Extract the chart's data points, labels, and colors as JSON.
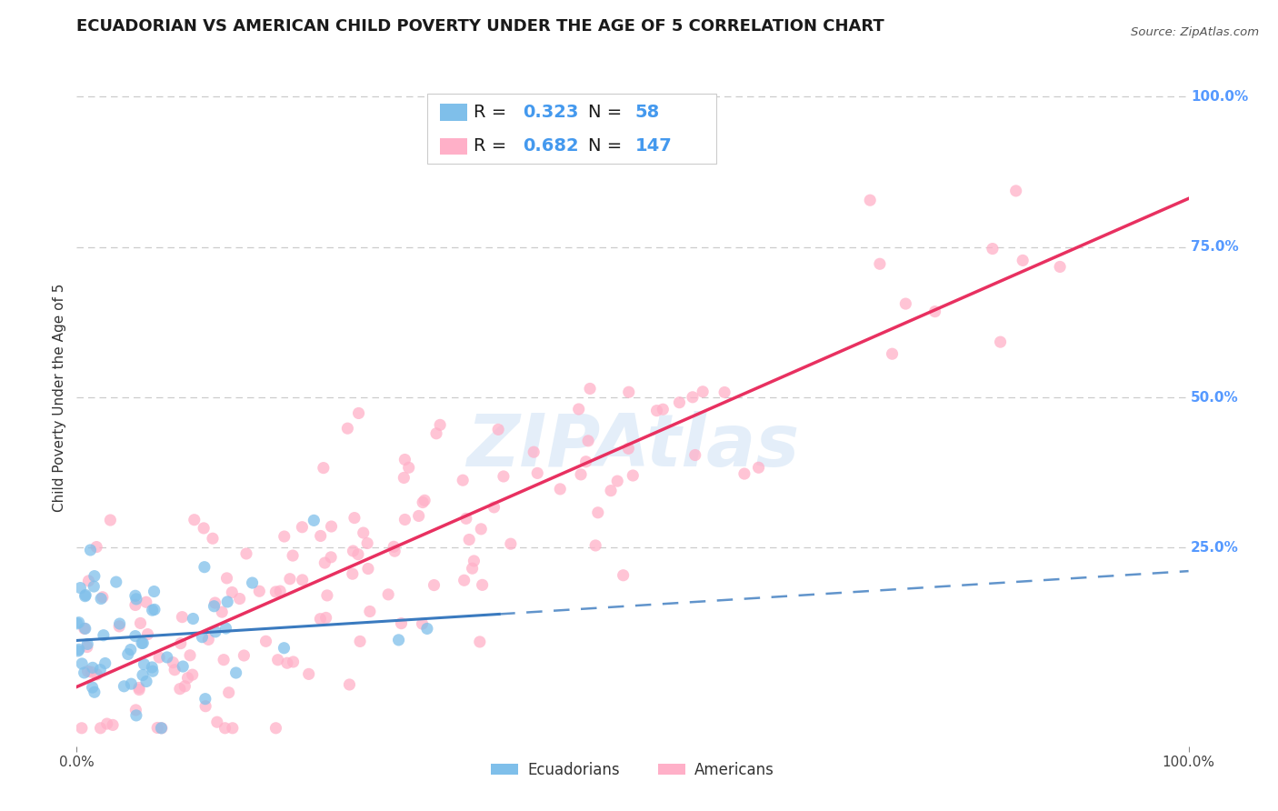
{
  "title": "ECUADORIAN VS AMERICAN CHILD POVERTY UNDER THE AGE OF 5 CORRELATION CHART",
  "source": "Source: ZipAtlas.com",
  "ylabel": "Child Poverty Under the Age of 5",
  "xlim": [
    0.0,
    1.0
  ],
  "ylim": [
    -0.08,
    1.08
  ],
  "x_tick_labels": [
    "0.0%",
    "100.0%"
  ],
  "y_tick_labels": [
    "25.0%",
    "50.0%",
    "75.0%",
    "100.0%"
  ],
  "y_tick_positions": [
    0.25,
    0.5,
    0.75,
    1.0
  ],
  "color_blue": "#7fbfea",
  "color_pink": "#ffb0c8",
  "color_line_blue": "#3a7abf",
  "color_line_pink": "#e83060",
  "background_color": "#ffffff",
  "grid_color": "#cccccc",
  "title_fontsize": 13,
  "axis_label_fontsize": 11,
  "tick_fontsize": 11,
  "legend_fontsize": 14,
  "watermark_text": "ZIPAtlas",
  "n_ecuador": 58,
  "n_american": 147,
  "r_ecuador": 0.323,
  "r_american": 0.682
}
